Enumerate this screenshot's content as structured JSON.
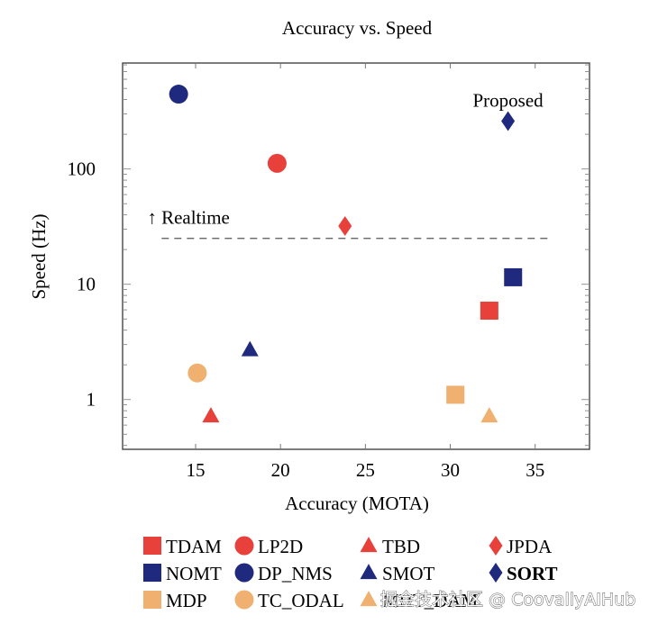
{
  "chart_data": {
    "type": "scatter",
    "title": "Accuracy vs. Speed",
    "xlabel": "Accuracy (MOTA)",
    "ylabel": "Speed (Hz)",
    "xscale": "linear",
    "yscale": "log",
    "xlim": [
      10.7,
      38.2
    ],
    "ylim": [
      0.37,
      830
    ],
    "xticks": [
      15,
      20,
      25,
      30,
      35
    ],
    "xtick_labels": [
      "15",
      "20",
      "25",
      "30",
      "35"
    ],
    "yticks": [
      1,
      10,
      100
    ],
    "ytick_labels": [
      "1",
      "10",
      "100"
    ],
    "grid": false,
    "legend_position": "bottom",
    "series": [
      {
        "name": "TDAM",
        "marker": "square",
        "color": "#E8403A",
        "x": 32.3,
        "y": 5.9,
        "bold": false
      },
      {
        "name": "NOMT",
        "marker": "square",
        "color": "#1F2A7E",
        "x": 33.7,
        "y": 11.5,
        "bold": false
      },
      {
        "name": "MDP",
        "marker": "square",
        "color": "#F0B070",
        "x": 30.3,
        "y": 1.1,
        "bold": false
      },
      {
        "name": "LP2D",
        "marker": "circle",
        "color": "#E8403A",
        "x": 19.8,
        "y": 112,
        "bold": false
      },
      {
        "name": "DP_NMS",
        "marker": "circle",
        "color": "#1F2A7E",
        "x": 14.0,
        "y": 446,
        "bold": false
      },
      {
        "name": "TC_ODAL",
        "marker": "circle",
        "color": "#F0B070",
        "x": 15.1,
        "y": 1.7,
        "bold": false
      },
      {
        "name": "TBD",
        "marker": "triangle",
        "color": "#E8403A",
        "x": 15.9,
        "y": 0.72,
        "bold": false
      },
      {
        "name": "SMOT",
        "marker": "triangle",
        "color": "#1F2A7E",
        "x": 18.2,
        "y": 2.7,
        "bold": false
      },
      {
        "name": "MHT_DAM",
        "marker": "triangle",
        "color": "#F0B070",
        "x": 32.3,
        "y": 0.72,
        "bold": false
      },
      {
        "name": "JPDA",
        "marker": "diamond",
        "color": "#E8403A",
        "x": 23.8,
        "y": 32,
        "bold": false
      },
      {
        "name": "SORT",
        "marker": "diamond",
        "color": "#1F2A7E",
        "x": 33.4,
        "y": 260,
        "bold": true
      }
    ],
    "legend_entries": [
      "TDAM",
      "LP2D",
      "TBD",
      "JPDA",
      "NOMT",
      "DP_NMS",
      "SMOT",
      "SORT",
      "MDP",
      "TC_ODAL",
      "MHT_DAM"
    ],
    "legend_display_names": {
      "TDAM": "TDAM",
      "LP2D": "LP2D",
      "TBD": "TBD",
      "JPDA": "JPDA",
      "NOMT": "NOMT",
      "DP_NMS": "DP_NMS",
      "SMOT": "SMOT",
      "SORT": "SORT",
      "MDP": "MDP",
      "TC_ODAL": "TC_ODAL",
      "MHT_DAM": "MHT_DAM"
    },
    "reference_line": {
      "label": "↑ Realtime",
      "y": 25,
      "x_range": [
        13,
        36
      ],
      "style": "dashed",
      "color": "#555555"
    },
    "annotations": [
      {
        "text": "Proposed",
        "target": "SORT"
      }
    ]
  },
  "watermark": "掘金技术社区 @ CoovallyAIHub"
}
